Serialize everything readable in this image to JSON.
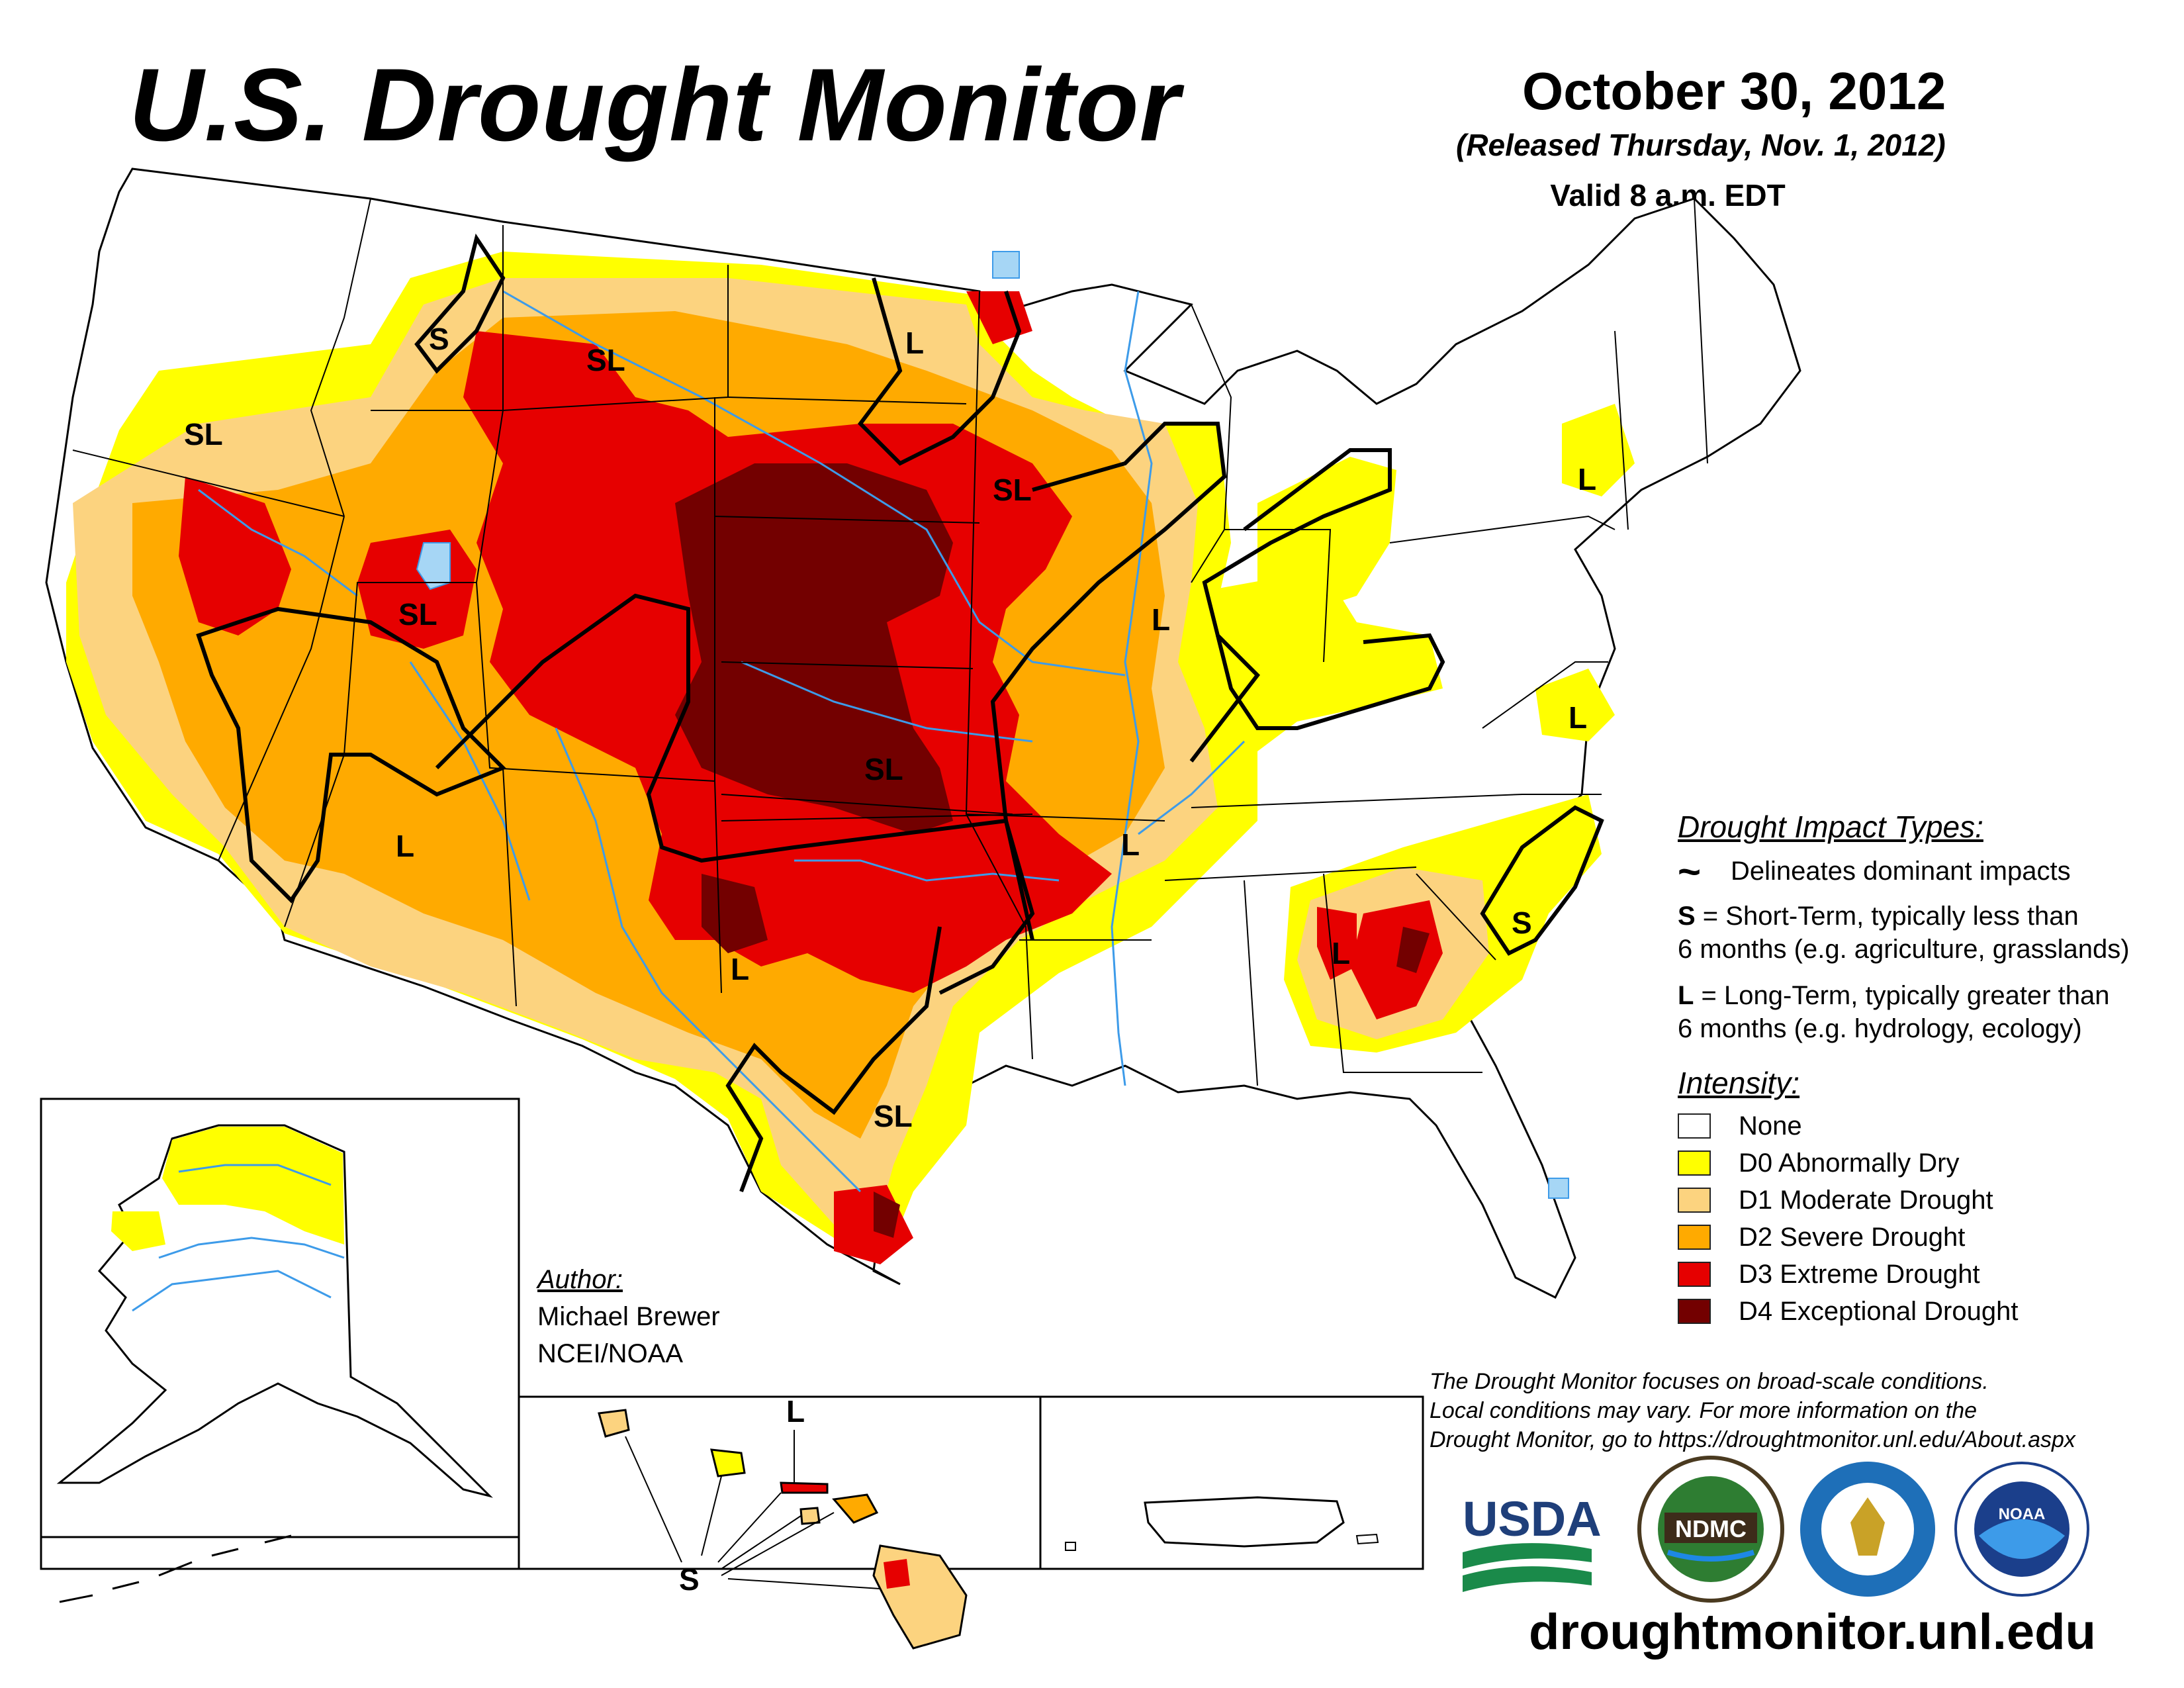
{
  "header": {
    "title": "U.S. Drought Monitor",
    "date": "October 30, 2012",
    "released": "(Released Thursday, Nov. 1, 2012)",
    "valid": "Valid 8 a.m. EDT"
  },
  "colors": {
    "none": "#ffffff",
    "d0": "#ffff00",
    "d1": "#fcd37f",
    "d2": "#ffaa00",
    "d3": "#e60000",
    "d4": "#730000",
    "water": "#3d9be9",
    "lake": "#a6d6f5"
  },
  "impact_legend": {
    "heading": "Drought Impact Types:",
    "delineates": "Delineates dominant impacts",
    "s_key": "S",
    "s_text": " = Short-Term, typically less than",
    "s_text2": "6 months (e.g. agriculture, grasslands)",
    "l_key": "L",
    "l_text": " = Long-Term, typically greater than",
    "l_text2": "6 months (e.g. hydrology, ecology)"
  },
  "intensity_legend": {
    "heading": "Intensity:",
    "items": [
      {
        "label": "None"
      },
      {
        "label": "D0 Abnormally Dry"
      },
      {
        "label": "D1 Moderate Drought"
      },
      {
        "label": "D2 Severe Drought"
      },
      {
        "label": "D3 Extreme Drought"
      },
      {
        "label": "D4 Exceptional Drought"
      }
    ]
  },
  "map_labels": {
    "sl": "SL",
    "s": "S",
    "l": "L"
  },
  "author": {
    "heading": "Author:",
    "name": "Michael Brewer",
    "org": "NCEI/NOAA"
  },
  "disclaimer": {
    "line1": "The Drought Monitor focuses on broad-scale conditions.",
    "line2": "Local conditions may vary. For more information on the",
    "line3": "Drought Monitor, go to https://droughtmonitor.unl.edu/About.aspx"
  },
  "logos": {
    "usda": "USDA",
    "ndmc": "NDMC",
    "noaa": "NOAA"
  },
  "url": "droughtmonitor.unl.edu"
}
